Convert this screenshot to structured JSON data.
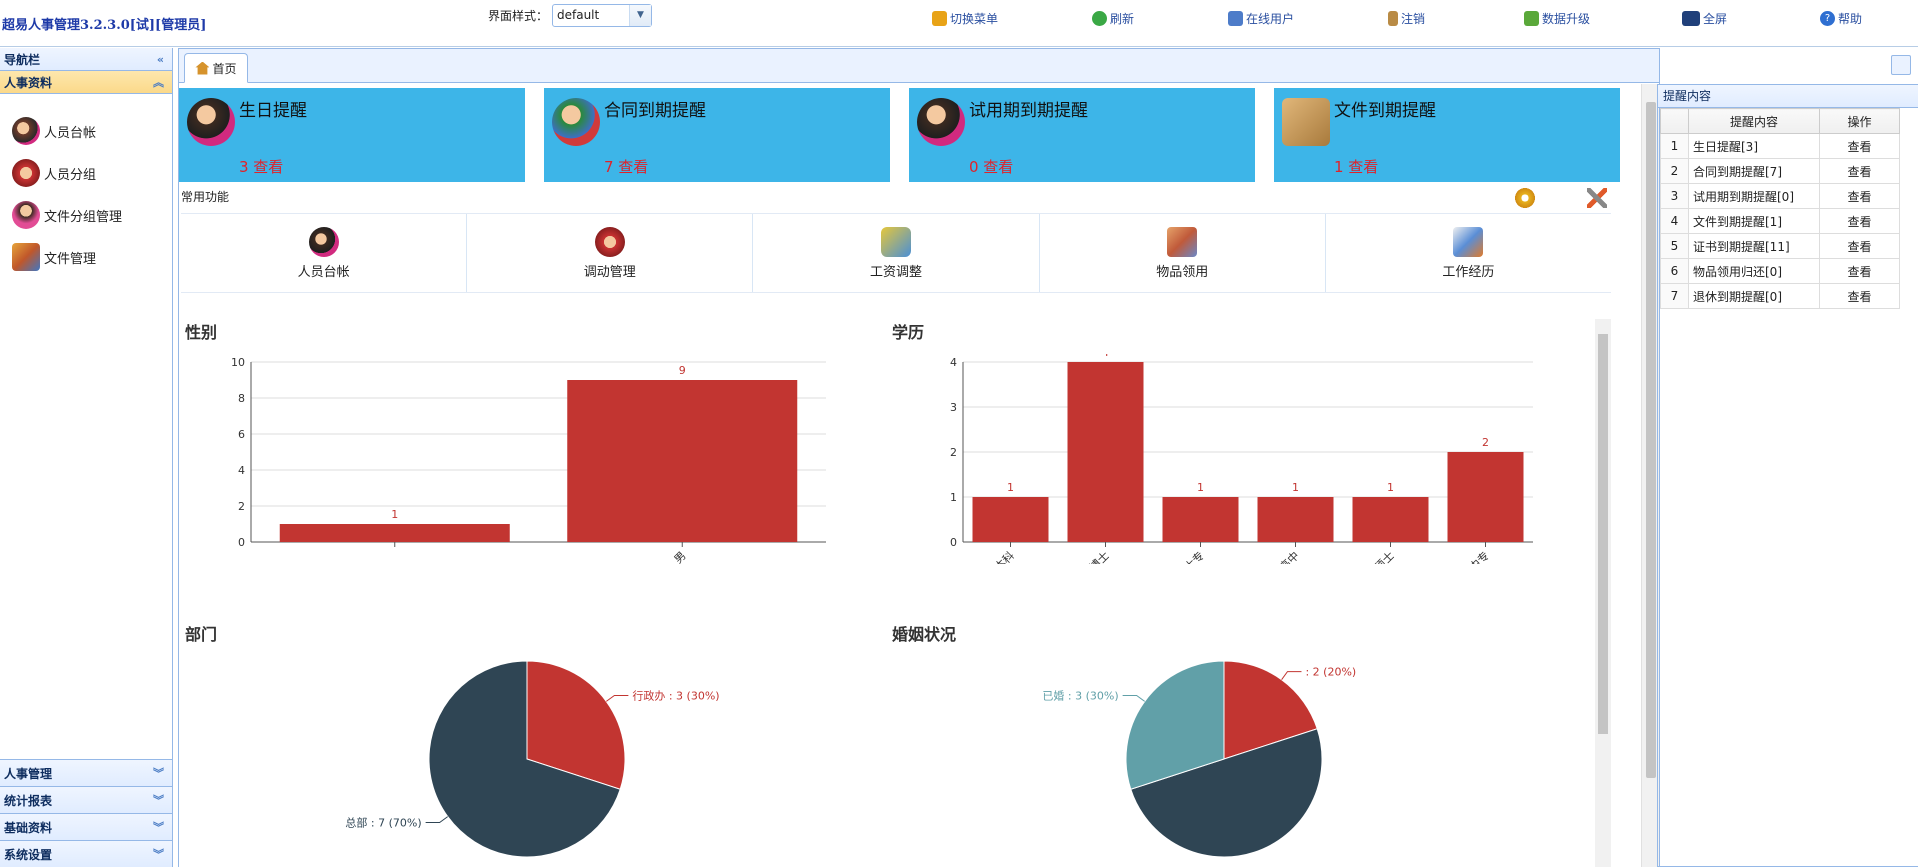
{
  "app": {
    "title": "超易人事管理3.2.3.0[试][管理员]"
  },
  "theme": {
    "label": "界面样式：",
    "value": "default"
  },
  "toolbar": [
    {
      "label": "切换菜单",
      "icon": "switch-menu-icon",
      "color": "#e8a317"
    },
    {
      "label": "刷新",
      "icon": "refresh-icon",
      "color": "#3aa845"
    },
    {
      "label": "在线用户",
      "icon": "online-users-icon",
      "color": "#4d7cc9"
    },
    {
      "label": "注销",
      "icon": "logout-icon",
      "color": "#b98b45"
    },
    {
      "label": "数据升级",
      "icon": "data-upgrade-icon",
      "color": "#5aa83a"
    },
    {
      "label": "全屏",
      "icon": "fullscreen-icon",
      "color": "#20407a"
    },
    {
      "label": "帮助",
      "icon": "help-icon",
      "color": "#2f6fd1"
    }
  ],
  "sidebar": {
    "title": "导航栏",
    "active_section": "人事资料",
    "items": [
      {
        "label": "人员台帐",
        "icon": "staff-ledger-icon"
      },
      {
        "label": "人员分组",
        "icon": "staff-group-icon"
      },
      {
        "label": "文件分组管理",
        "icon": "file-group-icon"
      },
      {
        "label": "文件管理",
        "icon": "file-manage-icon"
      }
    ],
    "sections": [
      "人事管理",
      "统计报表",
      "基础资料",
      "系统设置"
    ]
  },
  "tabs": [
    {
      "label": "首页",
      "icon": "home-icon"
    }
  ],
  "alerts": [
    {
      "title": "生日提醒",
      "count": "3 查看",
      "icon": "birthday-icon"
    },
    {
      "title": "合同到期提醒",
      "count": "7 查看",
      "icon": "contract-icon"
    },
    {
      "title": "试用期到期提醒",
      "count": "0 查看",
      "icon": "probation-icon"
    },
    {
      "title": "文件到期提醒",
      "count": "1 查看",
      "icon": "file-expire-icon"
    }
  ],
  "common": {
    "label": "常用功能",
    "items": [
      {
        "label": "人员台帐",
        "icon": "staff-ledger-icon"
      },
      {
        "label": "调动管理",
        "icon": "transfer-icon"
      },
      {
        "label": "工资调整",
        "icon": "salary-icon"
      },
      {
        "label": "物品领用",
        "icon": "goods-icon"
      },
      {
        "label": "工作经历",
        "icon": "work-history-icon"
      }
    ]
  },
  "chart_data": [
    {
      "type": "bar",
      "title": "性别",
      "categories": [
        "",
        "男"
      ],
      "values": [
        1,
        9
      ],
      "ylim": [
        0,
        10
      ],
      "yticks": [
        0,
        2,
        4,
        6,
        8,
        10
      ],
      "color": "#c23531"
    },
    {
      "type": "bar",
      "title": "学历",
      "categories": [
        "本科",
        "博士",
        "大专",
        "高中",
        "硕士",
        "中专"
      ],
      "values": [
        1,
        4,
        1,
        1,
        1,
        2
      ],
      "ylim": [
        0,
        4
      ],
      "yticks": [
        0,
        1,
        2,
        3,
        4
      ],
      "color": "#c23531"
    },
    {
      "type": "pie",
      "title": "部门",
      "slices": [
        {
          "name": "行政办",
          "value": 3,
          "label": "行政办 : 3 (30%)",
          "color": "#c23531"
        },
        {
          "name": "总部",
          "value": 7,
          "label": "总部 : 7 (70%)",
          "color": "#2f4554"
        }
      ]
    },
    {
      "type": "pie",
      "title": "婚姻状况",
      "slices": [
        {
          "name": "",
          "value": 2,
          "label": " : 2 (20%)",
          "color": "#c23531"
        },
        {
          "name": "",
          "value": 5,
          "label": "",
          "color": "#2f4554"
        },
        {
          "name": "已婚",
          "value": 3,
          "label": "已婚 : 3 (30%)",
          "color": "#61a0a8"
        }
      ]
    }
  ],
  "remind": {
    "title": "提醒内容",
    "columns": [
      "",
      "提醒内容",
      "操作"
    ],
    "rows": [
      {
        "num": "1",
        "content": "生日提醒[3]",
        "op": "查看"
      },
      {
        "num": "2",
        "content": "合同到期提醒[7]",
        "op": "查看"
      },
      {
        "num": "3",
        "content": "试用期到期提醒[0]",
        "op": "查看"
      },
      {
        "num": "4",
        "content": "文件到期提醒[1]",
        "op": "查看"
      },
      {
        "num": "5",
        "content": "证书到期提醒[11]",
        "op": "查看"
      },
      {
        "num": "6",
        "content": "物品领用归还[0]",
        "op": "查看"
      },
      {
        "num": "7",
        "content": "退休到期提醒[0]",
        "op": "查看"
      }
    ]
  }
}
